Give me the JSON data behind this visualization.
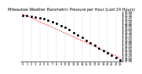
{
  "title": "Milwaukee Weather Barometric Pressure per Hour (Last 24 Hours)",
  "x_values": [
    0,
    1,
    2,
    3,
    4,
    5,
    6,
    7,
    8,
    9,
    10,
    11,
    12,
    13,
    14,
    15,
    16,
    17,
    18,
    19,
    20,
    21,
    22,
    23
  ],
  "y_values": [
    30.32,
    30.29,
    30.26,
    30.22,
    30.18,
    30.12,
    30.05,
    29.97,
    29.88,
    29.78,
    29.67,
    29.55,
    29.42,
    29.29,
    29.15,
    29.01,
    28.87,
    28.73,
    28.59,
    28.46,
    28.33,
    28.21,
    28.09,
    27.98
  ],
  "trend_y": [
    30.38,
    30.28,
    30.18,
    30.08,
    29.98,
    29.88,
    29.78,
    29.68,
    29.58,
    29.48,
    29.38,
    29.28,
    29.18,
    29.08,
    28.98,
    28.88,
    28.78,
    28.68,
    28.58,
    28.48,
    28.38,
    28.28,
    28.18,
    28.08
  ],
  "point_color": "#000000",
  "trend_color": "#ff0000",
  "bg_color": "#ffffff",
  "grid_color": "#aaaaaa",
  "ylim_min": 27.9,
  "ylim_max": 30.5,
  "ytick_step": 0.1,
  "title_fontsize": 3.5,
  "tick_fontsize": 2.5,
  "marker_size": 1.0,
  "trend_linewidth": 0.55,
  "grid_linewidth": 0.35
}
